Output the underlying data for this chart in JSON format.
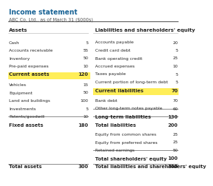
{
  "title": "Income statement",
  "subtitle": "ABC Co. Ltd., as of March 31 ($000s)",
  "left_header": "Assets",
  "right_header": "Liabilities and shareholders' equity",
  "left_items": [
    [
      "Cash",
      "5"
    ],
    [
      "Accounts receivable",
      "55"
    ],
    [
      "Inventory",
      "50"
    ],
    [
      "Pre-paid expenses",
      "10"
    ]
  ],
  "left_subtotal_label": "Current assets",
  "left_subtotal_value": "120",
  "left_fixed_items": [
    [
      "Vehicles",
      "15"
    ],
    [
      "Equipment",
      "50"
    ],
    [
      "Land and buildings",
      "100"
    ],
    [
      "Investments",
      "5"
    ],
    [
      "Patents/goodwill",
      "10"
    ]
  ],
  "left_total_label": "Fixed assets",
  "left_total_value": "180",
  "left_grand_label": "Total assets",
  "left_grand_value": "300",
  "right_items": [
    [
      "Accounts payable",
      "20"
    ],
    [
      "Credit card debt",
      "5"
    ],
    [
      "Bank operating credit",
      "25"
    ],
    [
      "Accrued expenses",
      "10"
    ],
    [
      "Taxes payable",
      "5"
    ],
    [
      "Current portion of long-term debt",
      "5"
    ]
  ],
  "right_subtotal_label": "Current liabilities",
  "right_subtotal_value": "70",
  "right_lt_items": [
    [
      "Bank debt",
      "70"
    ],
    [
      "Other long-term notes payable",
      "60"
    ]
  ],
  "right_lt_label": "Long-term liabilities",
  "right_lt_value": "130",
  "right_total_label": "Total liabilities",
  "right_total_value": "200",
  "right_equity_items": [
    [
      "Equity from common shares",
      "25"
    ],
    [
      "Equity from preferred shares",
      "25"
    ],
    [
      "Retained earnings",
      "50"
    ]
  ],
  "right_equity_label": "Total shareholders' equity",
  "right_equity_value": "100",
  "right_grand_label": "Total liabilities and shareholders' equity",
  "right_grand_value": "300",
  "highlight_color": "#FFEE58",
  "title_color": "#1a6496",
  "text_color": "#222222",
  "line_color": "#888888",
  "title_fs": 7.0,
  "subtitle_fs": 4.8,
  "header_fs": 5.2,
  "item_fs": 4.5,
  "subtotal_fs": 5.0
}
